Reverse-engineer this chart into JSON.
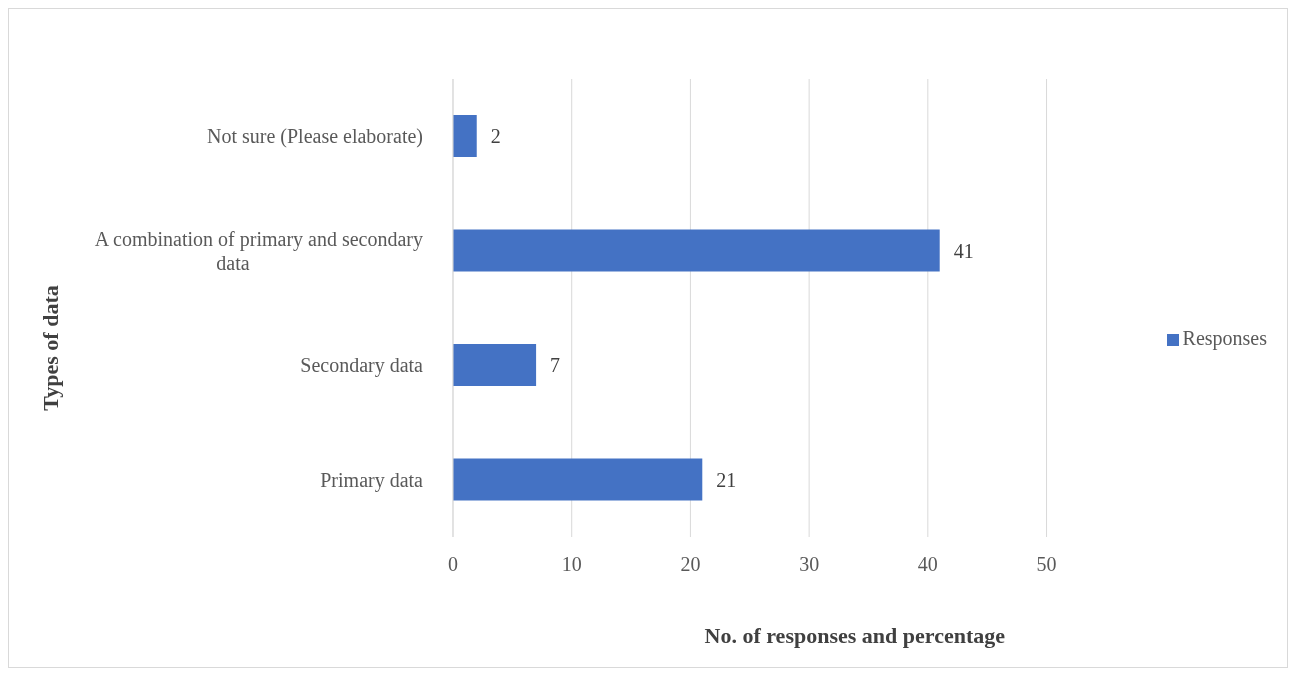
{
  "chart_data": {
    "type": "bar",
    "orientation": "horizontal",
    "xlabel": "No. of responses and percentage",
    "ylabel": "Types of data",
    "categories": [
      "Not sure (Please elaborate)",
      "A combination of primary and secondary data",
      "Secondary data",
      "Primary data"
    ],
    "series": [
      {
        "name": "Responses",
        "color": "#4472c4",
        "values": [
          2,
          41,
          7,
          21
        ]
      }
    ],
    "xlim": [
      0,
      50
    ],
    "xticks": [
      0,
      10,
      20,
      30,
      40,
      50
    ],
    "grid": "x",
    "legend": "right",
    "data_labels": true
  }
}
